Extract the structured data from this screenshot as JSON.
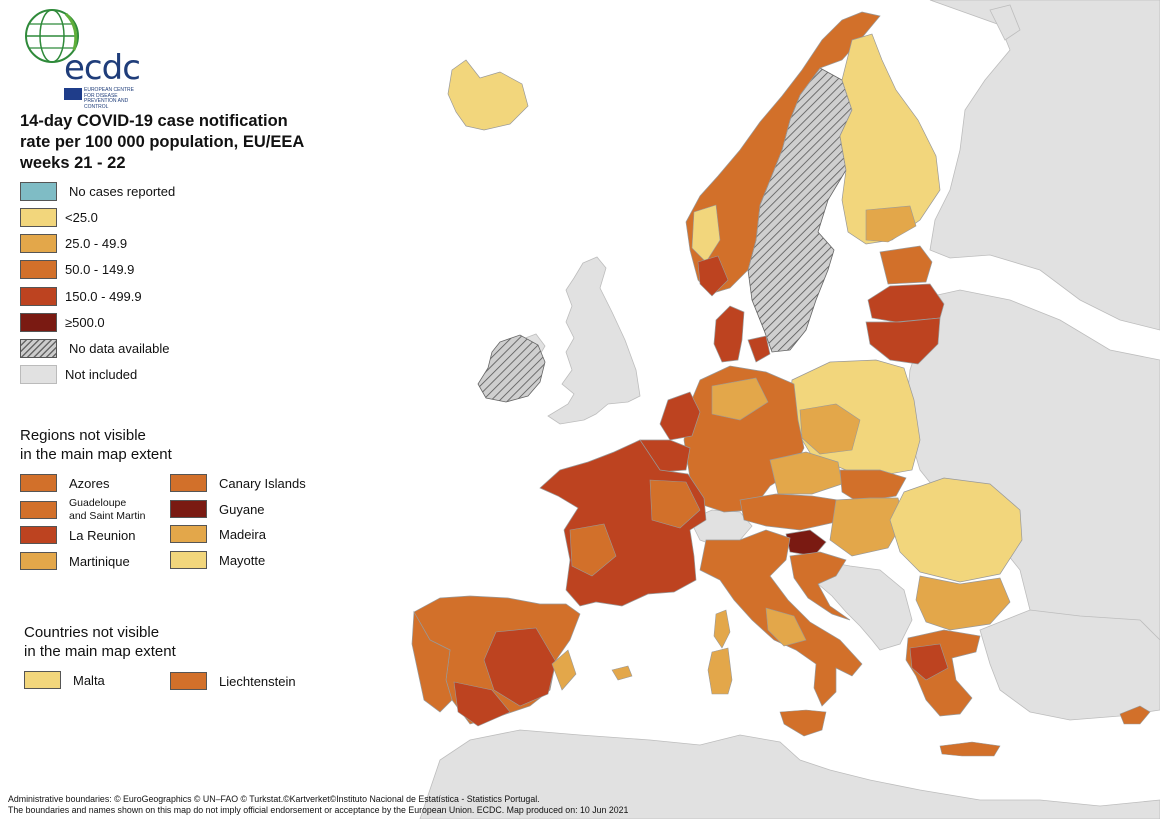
{
  "logo": {
    "text": "ecdc",
    "subtitle": "EUROPEAN CENTRE FOR DISEASE PREVENTION AND CONTROL"
  },
  "title": {
    "line1": "14-day COVID-19 case notification",
    "line2": "rate per 100 000 population, EU/EEA",
    "line3": "weeks 21 - 22"
  },
  "legend": [
    {
      "label": "No cases reported",
      "color": "#7fbcc5"
    },
    {
      "label": "<25.0",
      "color": "#f2d67c"
    },
    {
      "label": "25.0 - 49.9",
      "color": "#e3a74a"
    },
    {
      "label": "50.0 - 149.9",
      "color": "#d2702a"
    },
    {
      "label": "150.0 - 499.9",
      "color": "#bd4320"
    },
    {
      "label": "≥500.0",
      "color": "#7a1a12"
    },
    {
      "label": "No data available",
      "color": "hatched"
    },
    {
      "label": "Not included",
      "color": "#e1e1e1"
    }
  ],
  "regions_heading": {
    "line1": "Regions not visible",
    "line2": "in the main map extent"
  },
  "regions": {
    "azores": {
      "label": "Azores",
      "color": "#d2702a"
    },
    "canary": {
      "label": "Canary Islands",
      "color": "#d2702a"
    },
    "guadeloupe": {
      "label1": "Guadeloupe",
      "label2": "and Saint Martin",
      "color": "#d2702a"
    },
    "guyane": {
      "label": "Guyane",
      "color": "#7a1a12"
    },
    "reunion": {
      "label": "La Reunion",
      "color": "#bd4320"
    },
    "madeira": {
      "label": "Madeira",
      "color": "#e3a74a"
    },
    "martinique": {
      "label": "Martinique",
      "color": "#e3a74a"
    },
    "mayotte": {
      "label": "Mayotte",
      "color": "#f2d67c"
    }
  },
  "countries_heading": {
    "line1": "Countries not visible",
    "line2": "in the main map extent"
  },
  "countries": {
    "malta": {
      "label": "Malta",
      "color": "#f2d67c"
    },
    "liechtenstein": {
      "label": "Liechtenstein",
      "color": "#d2702a"
    }
  },
  "footer": {
    "line1": "Administrative boundaries: © EuroGeographics © UN–FAO © Turkstat.©Kartverket©Instituto Nacional de Estatística - Statistics Portugal.",
    "line2": "The boundaries and names shown on this map do not imply official endorsement or acceptance by the European Union. ECDC. Map produced on: 10 Jun 2021"
  }
}
